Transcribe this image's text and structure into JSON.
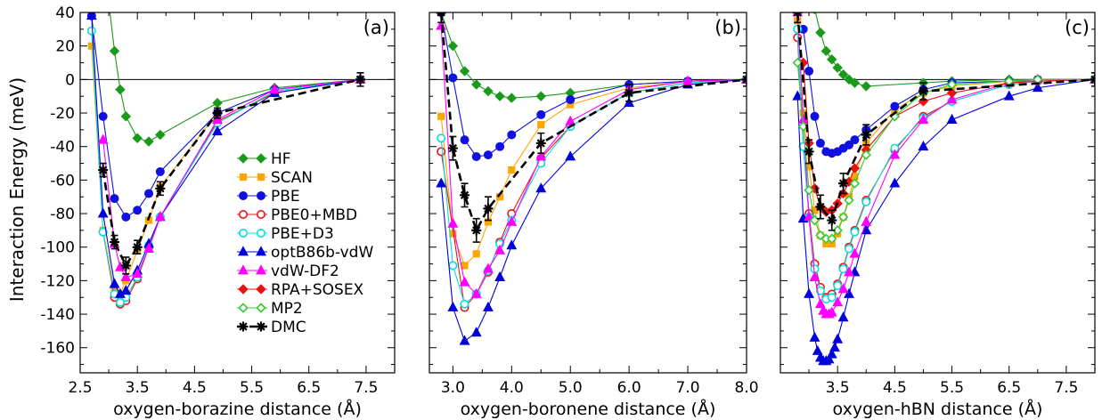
{
  "ylabel": "Interaction Energy (meV)",
  "legend_names": [
    "HF",
    "SCAN",
    "PBE",
    "PBE0+MBD",
    "PBE+D3",
    "optB86b-vdW",
    "vdW-DF2",
    "RPA+SOSEX",
    "MP2",
    "DMC"
  ],
  "styles": {
    "HF": {
      "color": "#1a9a1a",
      "marker": "diamond",
      "filled": true
    },
    "SCAN": {
      "color": "#ffa500",
      "marker": "square",
      "filled": true
    },
    "PBE": {
      "color": "#1010e0",
      "marker": "circle",
      "filled": true
    },
    "PBE0+MBD": {
      "color": "#ee1111",
      "marker": "circle",
      "filled": false
    },
    "PBE+D3": {
      "color": "#00e0e0",
      "marker": "circle",
      "filled": false
    },
    "optB86b-vdW": {
      "color": "#0000dd",
      "marker": "triangle",
      "filled": true
    },
    "vdW-DF2": {
      "color": "#ff00ff",
      "marker": "triangle",
      "filled": true
    },
    "RPA+SOSEX": {
      "color": "#ee1111",
      "marker": "diamond",
      "filled": true
    },
    "MP2": {
      "color": "#33cc33",
      "marker": "diamond",
      "filled": false
    },
    "DMC": {
      "color": "#000000",
      "marker": "star",
      "filled": true,
      "dashed": true
    }
  },
  "chart_data": [
    {
      "type": "line",
      "panel_label": "(a)",
      "xlabel": "oxygen-borazine distance (Å)",
      "ylabel": "Interaction Energy (meV)",
      "xlim": [
        2.5,
        8.0
      ],
      "ylim": [
        -175,
        40
      ],
      "xticks": [
        "2.5",
        "3.5",
        "4.5",
        "5.5",
        "6.5",
        "7.5"
      ],
      "yticks": [
        "40",
        "20",
        "0",
        "-20",
        "-40",
        "-60",
        "-80",
        "-100",
        "-120",
        "-140",
        "-160"
      ],
      "legend": "center",
      "series": [
        {
          "name": "HF",
          "x": [
            2.9,
            3.1,
            3.2,
            3.3,
            3.5,
            3.7,
            3.9,
            4.9,
            5.9,
            7.4
          ],
          "y": [
            75,
            17,
            -6,
            -22,
            -35,
            -37,
            -33,
            -14,
            -5,
            0
          ]
        },
        {
          "name": "SCAN",
          "x": [
            2.7,
            2.9,
            3.1,
            3.2,
            3.3,
            3.5,
            3.7,
            3.9,
            4.9,
            5.9,
            7.4
          ],
          "y": [
            20,
            -90,
            -126,
            -128,
            -120,
            -102,
            -84,
            -64,
            -20,
            -6,
            0
          ]
        },
        {
          "name": "PBE",
          "x": [
            2.7,
            2.9,
            3.1,
            3.3,
            3.5,
            3.7,
            3.9,
            4.9,
            5.9,
            7.4
          ],
          "y": [
            38,
            -22,
            -71,
            -82,
            -78,
            -68,
            -55,
            -20,
            -6,
            0
          ]
        },
        {
          "name": "PBE0+MBD",
          "x": [
            2.9,
            3.1,
            3.2,
            3.3,
            3.5,
            3.7,
            3.9,
            4.9,
            5.9,
            7.4
          ],
          "y": [
            -91,
            -130,
            -134,
            -132,
            -119,
            -100,
            -82,
            -25,
            -8,
            0
          ]
        },
        {
          "name": "PBE+D3",
          "x": [
            2.7,
            2.9,
            3.1,
            3.2,
            3.3,
            3.5,
            3.7,
            3.9,
            4.9,
            5.9,
            7.4
          ],
          "y": [
            29,
            -91,
            -128,
            -133,
            -130,
            -118,
            -99,
            -82,
            -26,
            -7,
            0
          ]
        },
        {
          "name": "optB86b-vdW",
          "x": [
            2.7,
            2.9,
            3.1,
            3.2,
            3.3,
            3.5,
            3.7,
            3.9,
            4.9,
            5.9,
            7.4
          ],
          "y": [
            38,
            -80,
            -122,
            -128,
            -126,
            -114,
            -98,
            -82,
            -31,
            -8,
            0
          ]
        },
        {
          "name": "vdW-DF2",
          "x": [
            2.9,
            3.1,
            3.2,
            3.3,
            3.5,
            3.7,
            3.9,
            4.9,
            5.9,
            7.4
          ],
          "y": [
            -36,
            -98,
            -112,
            -118,
            -116,
            -101,
            -82,
            -24,
            -6,
            0
          ]
        },
        {
          "name": "DMC",
          "x": [
            2.9,
            3.1,
            3.3,
            3.5,
            3.9,
            4.9,
            7.4
          ],
          "y": [
            -54,
            -97,
            -111,
            -100,
            -65,
            -20,
            0
          ],
          "err": [
            4,
            4,
            5,
            4,
            4,
            3,
            4
          ]
        }
      ]
    },
    {
      "type": "line",
      "panel_label": "(b)",
      "xlabel": "oxygen-boronene distance (Å)",
      "ylabel": "",
      "xlim": [
        2.6,
        8.0
      ],
      "ylim": [
        -175,
        40
      ],
      "xticks": [
        "3.0",
        "4.0",
        "5.0",
        "6.0",
        "7.0",
        "8.0"
      ],
      "yticks": [],
      "series": [
        {
          "name": "HF",
          "x": [
            2.8,
            3.0,
            3.2,
            3.4,
            3.6,
            3.8,
            4.0,
            4.5,
            5.0,
            6.0,
            7.0,
            8.0
          ],
          "y": [
            40,
            20,
            5,
            -3,
            -7,
            -10,
            -11,
            -10,
            -8,
            -3,
            -1,
            0
          ]
        },
        {
          "name": "SCAN",
          "x": [
            2.8,
            3.0,
            3.2,
            3.4,
            3.6,
            3.8,
            4.0,
            4.5,
            5.0,
            6.0,
            7.0,
            8.0
          ],
          "y": [
            -22,
            -92,
            -111,
            -104,
            -85,
            -70,
            -54,
            -27,
            -15,
            -5,
            -1,
            0
          ]
        },
        {
          "name": "PBE",
          "x": [
            2.8,
            3.0,
            3.2,
            3.4,
            3.6,
            3.8,
            4.0,
            4.5,
            5.0,
            6.0,
            7.0,
            8.0
          ],
          "y": [
            40,
            1,
            -36,
            -46,
            -45,
            -40,
            -33,
            -21,
            -12,
            -3,
            -1,
            0
          ]
        },
        {
          "name": "PBE0+MBD",
          "x": [
            2.8,
            3.2,
            3.4,
            3.6,
            3.8,
            4.0,
            4.5,
            5.0,
            6.0,
            7.0,
            8.0
          ],
          "y": [
            -43,
            -136,
            -128,
            -115,
            -97,
            -80,
            -47,
            -28,
            -8,
            -2,
            0
          ]
        },
        {
          "name": "PBE+D3",
          "x": [
            2.8,
            3.0,
            3.2,
            3.4,
            3.6,
            3.8,
            4.0,
            4.5,
            5.0,
            6.0,
            7.0,
            8.0
          ],
          "y": [
            -35,
            -111,
            -134,
            -128,
            -114,
            -98,
            -84,
            -50,
            -28,
            -8,
            -2,
            0
          ]
        },
        {
          "name": "optB86b-vdW",
          "x": [
            2.8,
            3.0,
            3.2,
            3.4,
            3.6,
            3.8,
            4.0,
            4.5,
            5.0,
            6.0,
            7.0,
            8.0
          ],
          "y": [
            -62,
            -136,
            -156,
            -151,
            -136,
            -118,
            -99,
            -65,
            -46,
            -14,
            -3,
            0
          ]
        },
        {
          "name": "vdW-DF2",
          "x": [
            2.8,
            3.0,
            3.2,
            3.4,
            3.6,
            3.8,
            4.0,
            4.5,
            5.0,
            6.0,
            7.0,
            8.0
          ],
          "y": [
            32,
            -86,
            -121,
            -128,
            -113,
            -102,
            -85,
            -46,
            -25,
            -6,
            -1,
            0
          ]
        },
        {
          "name": "DMC",
          "x": [
            2.8,
            3.0,
            3.2,
            3.4,
            3.6,
            4.5,
            6.0,
            8.0
          ],
          "y": [
            40,
            -41,
            -69,
            -90,
            -77,
            -38,
            -8,
            0
          ],
          "err": [
            6,
            7,
            7,
            7,
            7,
            6,
            5,
            4
          ]
        }
      ]
    },
    {
      "type": "line",
      "panel_label": "(c)",
      "xlabel": "oxygen-hBN distance (Å)",
      "ylabel": "",
      "xlim": [
        2.5,
        8.0
      ],
      "ylim": [
        -175,
        40
      ],
      "xticks": [
        "3.5",
        "4.5",
        "5.5",
        "6.5",
        "7.5"
      ],
      "yticks": [],
      "series": [
        {
          "name": "HF",
          "x": [
            3.0,
            3.1,
            3.2,
            3.3,
            3.4,
            3.5,
            3.6,
            3.7,
            3.8,
            4.0,
            5.0,
            5.5,
            6.5,
            7.0,
            8.0
          ],
          "y": [
            60,
            42,
            28,
            17,
            12,
            7,
            3,
            0,
            -2,
            -4,
            -2,
            -1,
            0,
            0,
            0
          ]
        },
        {
          "name": "SCAN",
          "x": [
            2.8,
            2.9,
            3.0,
            3.1,
            3.2,
            3.3,
            3.4,
            3.5,
            3.6,
            3.7,
            3.8,
            4.0,
            4.5,
            5.0,
            5.5,
            6.5,
            7.0,
            8.0
          ],
          "y": [
            35,
            -20,
            -52,
            -78,
            -93,
            -98,
            -98,
            -92,
            -82,
            -70,
            -58,
            -38,
            -18,
            -8,
            -4,
            -1,
            0,
            0
          ]
        },
        {
          "name": "PBE",
          "x": [
            2.9,
            3.0,
            3.1,
            3.2,
            3.3,
            3.4,
            3.5,
            3.6,
            3.7,
            3.8,
            4.0,
            4.5,
            5.0,
            5.5,
            6.5,
            7.0,
            8.0
          ],
          "y": [
            30,
            5,
            -22,
            -38,
            -43,
            -44,
            -43,
            -41,
            -39,
            -36,
            -30,
            -16,
            -6,
            -2,
            -1,
            0,
            0
          ]
        },
        {
          "name": "PBE0+MBD",
          "x": [
            2.8,
            2.9,
            3.0,
            3.1,
            3.2,
            3.3,
            3.4,
            3.5,
            3.6,
            3.7,
            3.8,
            4.0,
            4.5,
            5.0,
            5.5,
            6.5,
            7.0,
            8.0
          ],
          "y": [
            25,
            -40,
            -80,
            -110,
            -124,
            -130,
            -128,
            -122,
            -112,
            -100,
            -90,
            -72,
            -42,
            -22,
            -13,
            -3,
            -1,
            0
          ]
        },
        {
          "name": "PBE+D3",
          "x": [
            2.8,
            2.9,
            3.0,
            3.1,
            3.2,
            3.3,
            3.4,
            3.5,
            3.6,
            3.7,
            3.8,
            4.0,
            4.5,
            5.0,
            5.5,
            6.5,
            7.0,
            8.0
          ],
          "y": [
            30,
            -40,
            -82,
            -113,
            -126,
            -131,
            -130,
            -123,
            -113,
            -101,
            -91,
            -73,
            -41,
            -23,
            -13,
            -3,
            -1,
            0
          ]
        },
        {
          "name": "optB86b-vdW",
          "x": [
            2.8,
            2.9,
            3.0,
            3.1,
            3.15,
            3.2,
            3.25,
            3.3,
            3.35,
            3.4,
            3.45,
            3.5,
            3.6,
            3.7,
            3.8,
            4.0,
            4.5,
            5.0,
            5.5,
            6.5,
            7.0,
            8.0
          ],
          "y": [
            -10,
            -83,
            -128,
            -154,
            -162,
            -166,
            -168,
            -168,
            -167,
            -164,
            -160,
            -155,
            -142,
            -128,
            -115,
            -90,
            -62,
            -40,
            -24,
            -10,
            -5,
            0
          ]
        },
        {
          "name": "vdW-DF2",
          "x": [
            2.8,
            2.9,
            3.0,
            3.1,
            3.2,
            3.25,
            3.3,
            3.35,
            3.4,
            3.5,
            3.6,
            3.7,
            3.8,
            4.0,
            4.5,
            5.0,
            5.5,
            6.5,
            7.0,
            8.0
          ],
          "y": [
            40,
            -24,
            -82,
            -118,
            -134,
            -138,
            -140,
            -140,
            -139,
            -133,
            -125,
            -115,
            -104,
            -85,
            -45,
            -24,
            -12,
            -2,
            0,
            0
          ]
        },
        {
          "name": "RPA+SOSEX",
          "x": [
            2.9,
            3.0,
            3.1,
            3.2,
            3.3,
            3.4,
            3.5,
            3.6,
            3.7,
            3.8,
            4.0,
            4.5,
            5.0,
            5.5,
            6.5,
            7.0,
            8.0
          ],
          "y": [
            10,
            -38,
            -65,
            -76,
            -79,
            -78,
            -74,
            -68,
            -61,
            -53,
            -42,
            -22,
            -13,
            -8,
            -2,
            -1,
            0
          ]
        },
        {
          "name": "MP2",
          "x": [
            2.8,
            2.9,
            3.0,
            3.1,
            3.2,
            3.3,
            3.4,
            3.5,
            3.6,
            3.7,
            3.8,
            4.0,
            4.5,
            5.0,
            5.5,
            6.5,
            7.0,
            8.0
          ],
          "y": [
            10,
            -28,
            -66,
            -84,
            -93,
            -95,
            -95,
            -90,
            -82,
            -72,
            -62,
            -45,
            -22,
            -8,
            -3,
            -1,
            0,
            0
          ]
        },
        {
          "name": "DMC",
          "x": [
            2.8,
            3.0,
            3.2,
            3.4,
            3.6,
            4.0,
            5.0,
            8.0
          ],
          "y": [
            40,
            -43,
            -76,
            -84,
            -62,
            -33,
            -7,
            0
          ],
          "err": [
            6,
            7,
            7,
            6,
            6,
            6,
            5,
            4
          ]
        }
      ]
    }
  ]
}
